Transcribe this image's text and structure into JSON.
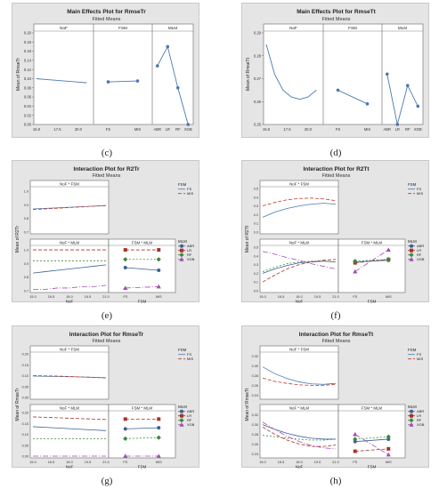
{
  "figure": {
    "panels": [
      {
        "id": "c",
        "caption": "(c)"
      },
      {
        "id": "d",
        "caption": "(d)"
      },
      {
        "id": "e",
        "caption": "(e)"
      },
      {
        "id": "f",
        "caption": "(f)"
      },
      {
        "id": "g",
        "caption": "(g)"
      },
      {
        "id": "h",
        "caption": "(h)"
      }
    ]
  },
  "colors": {
    "panel_bg": "#e5e5e5",
    "plot_bg": "#ffffff",
    "series_blue": "#4a78b0",
    "series_red": "#c0392b",
    "ABR": "#3c5f96",
    "LR": "#a8322b",
    "RF": "#3a8a3a",
    "XGB": "#a34bb4"
  },
  "chart_data": [
    {
      "type": "line",
      "panel": "c",
      "title": "Main Effects Plot for RmseTr",
      "subtitle": "Fitted Means",
      "ylabel": "Mean of RmseTr",
      "ylim": [
        0.0,
        0.2
      ],
      "yticks": [
        "0.00",
        "0.02",
        "0.04",
        "0.06",
        "0.08",
        "0.10",
        "0.12",
        "0.14",
        "0.16",
        "0.18",
        "0.20"
      ],
      "facets": [
        {
          "name": "NoF",
          "x": [
            15,
            16,
            17,
            18,
            19,
            20,
            21
          ],
          "xticks": [
            "15.0",
            "17.5",
            "20.0"
          ],
          "xlim": [
            15,
            21.5
          ],
          "values": [
            0.1,
            0.0985,
            0.097,
            0.0955,
            0.094,
            0.0925,
            0.091
          ]
        },
        {
          "name": "FSM",
          "categories": [
            "FS",
            "MIS"
          ],
          "values": [
            0.093,
            0.095
          ]
        },
        {
          "name": "MLM",
          "categories": [
            "ABR",
            "LR",
            "RF",
            "XGB"
          ],
          "values": [
            0.128,
            0.17,
            0.08,
            0.0
          ]
        }
      ]
    },
    {
      "type": "line",
      "panel": "d",
      "title": "Main Effects Plot for RmseTt",
      "subtitle": "Fitted Means",
      "ylabel": "Mean of RmseTt",
      "ylim": [
        0.25,
        0.29
      ],
      "yticks": [
        "0.25",
        "0.26",
        "0.27",
        "0.28",
        "0.29"
      ],
      "facets": [
        {
          "name": "NoF",
          "x": [
            15,
            16,
            17,
            18,
            19,
            20,
            21
          ],
          "xticks": [
            "15.0",
            "17.5",
            "20.0"
          ],
          "xlim": [
            15,
            21.5
          ],
          "values": [
            0.285,
            0.272,
            0.265,
            0.262,
            0.261,
            0.262,
            0.265
          ]
        },
        {
          "name": "FSM",
          "categories": [
            "FS",
            "MIS"
          ],
          "values": [
            0.265,
            0.259
          ]
        },
        {
          "name": "MLM",
          "categories": [
            "ABR",
            "LR",
            "RF",
            "XGB"
          ],
          "values": [
            0.272,
            0.25,
            0.267,
            0.258
          ]
        }
      ]
    },
    {
      "type": "interaction",
      "panel": "e",
      "title": "Interaction Plot for R2Tr",
      "subtitle": "Fitted Means",
      "ylabel": "Mean of R2Tr",
      "yticks": [
        "0.7",
        "0.8",
        "0.9",
        "1.0"
      ],
      "ylim": [
        0.7,
        1.02
      ],
      "top_left": {
        "label": "NoF * FSM",
        "x": [
          15,
          16,
          17,
          18,
          19,
          20,
          21
        ],
        "series": [
          {
            "name": "FS",
            "values": [
              0.87,
              0.874,
              0.878,
              0.882,
              0.886,
              0.89,
              0.894
            ]
          },
          {
            "name": "MIS",
            "values": [
              0.865,
              0.87,
              0.875,
              0.88,
              0.885,
              0.89,
              0.895
            ]
          }
        ]
      },
      "bottom_left": {
        "label": "NoF * MLM",
        "x": [
          15,
          16,
          17,
          18,
          19,
          20,
          21
        ],
        "xticks": [
          "15.0",
          "16.5",
          "18.0",
          "19.5",
          "21.0"
        ],
        "xlabel": "NoF",
        "series": [
          {
            "name": "ABR",
            "values": [
              0.83,
              0.84,
              0.85,
              0.86,
              0.87,
              0.88,
              0.89
            ]
          },
          {
            "name": "LR",
            "values": [
              1.0,
              1.0,
              1.0,
              1.0,
              1.0,
              1.0,
              1.0
            ]
          },
          {
            "name": "RF",
            "values": [
              0.92,
              0.92,
              0.92,
              0.92,
              0.92,
              0.92,
              0.92
            ]
          },
          {
            "name": "XGB",
            "values": [
              0.71,
              0.71,
              0.72,
              0.72,
              0.73,
              0.73,
              0.74
            ]
          }
        ]
      },
      "bottom_right": {
        "label": "FSM * MLM",
        "categories": [
          "FS",
          "MIS"
        ],
        "xlabel": "FSM",
        "series": [
          {
            "name": "ABR",
            "values": [
              0.87,
              0.85
            ]
          },
          {
            "name": "LR",
            "values": [
              1.0,
              1.0
            ]
          },
          {
            "name": "RF",
            "values": [
              0.93,
              0.93
            ]
          },
          {
            "name": "XGB",
            "values": [
              0.72,
              0.73
            ]
          }
        ]
      },
      "legends": [
        {
          "title": "FSM",
          "entries": [
            "FS",
            "MIS"
          ]
        },
        {
          "title": "MLM",
          "entries": [
            "ABR",
            "LR",
            "RF",
            "XGB"
          ]
        }
      ]
    },
    {
      "type": "interaction",
      "panel": "f",
      "title": "Interaction Plot for R2Tt",
      "subtitle": "Fitted Means",
      "ylabel": "Mean of R2Tt",
      "yticks": [
        "0.0",
        "0.1",
        "0.2",
        "0.3",
        "0.4",
        "0.5"
      ],
      "ylim": [
        0.0,
        0.5
      ],
      "top_left": {
        "label": "NoF * FSM",
        "x": [
          15,
          16,
          17,
          18,
          19,
          20,
          21
        ],
        "series": [
          {
            "name": "FS",
            "values": [
              0.17,
              0.23,
              0.27,
              0.3,
              0.32,
              0.33,
              0.32
            ]
          },
          {
            "name": "MIS",
            "values": [
              0.3,
              0.34,
              0.37,
              0.385,
              0.39,
              0.38,
              0.36
            ]
          }
        ]
      },
      "bottom_left": {
        "label": "NoF * MLM",
        "x": [
          15,
          16,
          17,
          18,
          19,
          20,
          21
        ],
        "xticks": [
          "15.0",
          "16.5",
          "18.0",
          "19.5",
          "21.0"
        ],
        "xlabel": "NoF",
        "series": [
          {
            "name": "ABR",
            "values": [
              0.2,
              0.25,
              0.29,
              0.32,
              0.33,
              0.34,
              0.33
            ]
          },
          {
            "name": "LR",
            "values": [
              0.1,
              0.18,
              0.25,
              0.3,
              0.33,
              0.35,
              0.36
            ]
          },
          {
            "name": "RF",
            "values": [
              0.22,
              0.27,
              0.31,
              0.33,
              0.34,
              0.34,
              0.33
            ]
          },
          {
            "name": "XGB",
            "values": [
              0.45,
              0.42,
              0.38,
              0.35,
              0.31,
              0.28,
              0.25
            ]
          }
        ]
      },
      "bottom_right": {
        "label": "FSM * MLM",
        "categories": [
          "FS",
          "MIS"
        ],
        "xlabel": "FSM",
        "series": [
          {
            "name": "ABR",
            "values": [
              0.33,
              0.35
            ]
          },
          {
            "name": "LR",
            "values": [
              0.32,
              0.36
            ]
          },
          {
            "name": "RF",
            "values": [
              0.34,
              0.36
            ]
          },
          {
            "name": "XGB",
            "values": [
              0.22,
              0.47
            ]
          }
        ]
      },
      "legends": [
        {
          "title": "FSM",
          "entries": [
            "FS",
            "MIS"
          ]
        },
        {
          "title": "MLM",
          "entries": [
            "ABR",
            "LR",
            "RF",
            "XGB"
          ]
        }
      ]
    },
    {
      "type": "interaction",
      "panel": "g",
      "title": "Interaction Plot for RmseTr",
      "subtitle": "Fitted Means",
      "ylabel": "Mean of RmseTr",
      "yticks": [
        "0.00",
        "0.05",
        "0.10",
        "0.15",
        "0.20"
      ],
      "ylim": [
        0.0,
        0.2
      ],
      "top_left": {
        "label": "NoF * FSM",
        "x": [
          15,
          16,
          17,
          18,
          19,
          20,
          21
        ],
        "series": [
          {
            "name": "FS",
            "values": [
              0.098,
              0.097,
              0.096,
              0.095,
              0.094,
              0.092,
              0.09
            ]
          },
          {
            "name": "MIS",
            "values": [
              0.1,
              0.099,
              0.098,
              0.096,
              0.094,
              0.092,
              0.09
            ]
          }
        ]
      },
      "bottom_left": {
        "label": "NoF * MLM",
        "x": [
          15,
          16,
          17,
          18,
          19,
          20,
          21
        ],
        "xticks": [
          "15.0",
          "16.5",
          "18.0",
          "19.5",
          "21.0"
        ],
        "xlabel": "NoF",
        "series": [
          {
            "name": "ABR",
            "values": [
              0.135,
              0.132,
              0.129,
              0.126,
              0.123,
              0.12,
              0.117
            ]
          },
          {
            "name": "LR",
            "values": [
              0.18,
              0.178,
              0.176,
              0.174,
              0.172,
              0.17,
              0.168
            ]
          },
          {
            "name": "RF",
            "values": [
              0.08,
              0.08,
              0.08,
              0.08,
              0.08,
              0.08,
              0.08
            ]
          },
          {
            "name": "XGB",
            "values": [
              0.0,
              0.0,
              0.0,
              0.0,
              0.0,
              0.0,
              0.0
            ]
          }
        ]
      },
      "bottom_right": {
        "label": "FSM * MLM",
        "categories": [
          "FS",
          "MIS"
        ],
        "xlabel": "FSM",
        "series": [
          {
            "name": "ABR",
            "values": [
              0.125,
              0.13
            ]
          },
          {
            "name": "LR",
            "values": [
              0.17,
              0.17
            ]
          },
          {
            "name": "RF",
            "values": [
              0.08,
              0.085
            ]
          },
          {
            "name": "XGB",
            "values": [
              0.0,
              0.0
            ]
          }
        ]
      },
      "legends": [
        {
          "title": "FSM",
          "entries": [
            "FS",
            "MIS"
          ]
        },
        {
          "title": "MLM",
          "entries": [
            "ABR",
            "LR",
            "RF",
            "XGB"
          ]
        }
      ]
    },
    {
      "type": "interaction",
      "panel": "h",
      "title": "Interaction Plot for RmseTt",
      "subtitle": "Fitted Means",
      "ylabel": "Mean of RmseTt",
      "yticks": [
        "0.24",
        "0.26",
        "0.28",
        "0.30",
        "0.32"
      ],
      "ylim": [
        0.235,
        0.325
      ],
      "top_left": {
        "label": "NoF * FSM",
        "x": [
          15,
          16,
          17,
          18,
          19,
          20,
          21
        ],
        "series": [
          {
            "name": "FS",
            "values": [
              0.298,
              0.284,
              0.274,
              0.267,
              0.263,
              0.262,
              0.264
            ]
          },
          {
            "name": "MIS",
            "values": [
              0.275,
              0.268,
              0.264,
              0.261,
              0.26,
              0.26,
              0.262
            ]
          }
        ]
      },
      "bottom_left": {
        "label": "NoF * MLM",
        "x": [
          15,
          16,
          17,
          18,
          19,
          20,
          21
        ],
        "xticks": [
          "15.0",
          "16.5",
          "18.0",
          "19.5",
          "21.0"
        ],
        "xlabel": "NoF",
        "series": [
          {
            "name": "ABR",
            "values": [
              0.3,
              0.29,
              0.282,
              0.276,
              0.272,
              0.27,
              0.27
            ]
          },
          {
            "name": "LR",
            "values": [
              0.295,
              0.28,
              0.268,
              0.26,
              0.255,
              0.255,
              0.258
            ]
          },
          {
            "name": "RF",
            "values": [
              0.278,
              0.275,
              0.272,
              0.27,
              0.268,
              0.268,
              0.27
            ]
          },
          {
            "name": "XGB",
            "values": [
              0.305,
              0.29,
              0.276,
              0.265,
              0.257,
              0.252,
              0.25
            ]
          }
        ]
      },
      "bottom_right": {
        "label": "FSM * MLM",
        "categories": [
          "FS",
          "MIS"
        ],
        "xlabel": "FSM",
        "series": [
          {
            "name": "ABR",
            "values": [
              0.265,
              0.27
            ]
          },
          {
            "name": "LR",
            "values": [
              0.245,
              0.25
            ]
          },
          {
            "name": "RF",
            "values": [
              0.27,
              0.275
            ]
          },
          {
            "name": "XGB",
            "values": [
              0.28,
              0.238
            ]
          }
        ]
      },
      "legends": [
        {
          "title": "FSM",
          "entries": [
            "FS",
            "MIS"
          ]
        },
        {
          "title": "MLM",
          "entries": [
            "ABR",
            "LR",
            "RF",
            "XGB"
          ]
        }
      ]
    }
  ]
}
